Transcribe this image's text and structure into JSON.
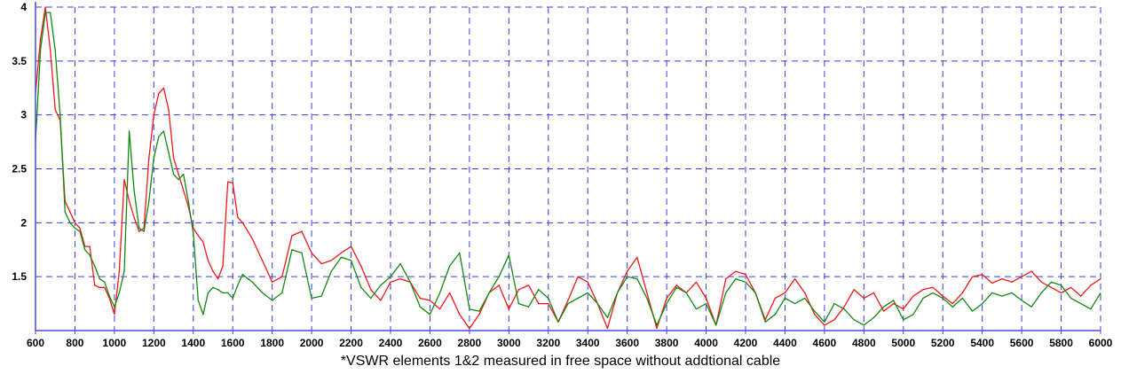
{
  "chart_data": {
    "type": "line",
    "title": "",
    "xlabel": "",
    "ylabel": "",
    "caption": "*VSWR  elements 1&2 measured in free space without addtional cable",
    "xlim": [
      600,
      6000
    ],
    "ylim": [
      1.0,
      4.0
    ],
    "xticks": [
      600,
      800,
      1000,
      1200,
      1400,
      1600,
      1800,
      2000,
      2200,
      2400,
      2600,
      2800,
      3000,
      3200,
      3400,
      3600,
      3800,
      4000,
      4200,
      4400,
      4600,
      4800,
      5000,
      5200,
      5400,
      5600,
      5800,
      6000
    ],
    "xtick_labels": [
      "600",
      "800",
      "1000",
      "1200",
      "1400",
      "1600",
      "1800",
      "2000",
      "2200",
      "2400",
      "2600",
      "2800",
      "3000",
      "3200",
      "3400",
      "3600",
      "3800",
      "4000",
      "4200",
      "4400",
      "4600",
      "4800",
      "5000",
      "5200",
      "5400",
      "5600",
      "5800",
      "6000"
    ],
    "yticks": [
      1.5,
      2,
      2.5,
      3,
      3.5,
      4
    ],
    "ytick_labels": [
      "1.5",
      "2",
      "2.5",
      "3",
      "3.5",
      "4"
    ],
    "grid": true,
    "colors": {
      "grid": "#3c3cdc",
      "axis": "#4a4ae0",
      "series1": "#f01818",
      "series2": "#128a12"
    },
    "series": [
      {
        "x": [
          600,
          625,
          650,
          675,
          700,
          725,
          750,
          775,
          800,
          825,
          850,
          875,
          900,
          925,
          950,
          975,
          1000,
          1025,
          1050,
          1075,
          1100,
          1125,
          1150,
          1175,
          1200,
          1225,
          1250,
          1275,
          1300,
          1325,
          1350,
          1375,
          1400,
          1425,
          1450,
          1475,
          1500,
          1525,
          1550,
          1575,
          1600,
          1625,
          1650,
          1700,
          1750,
          1800,
          1850,
          1900,
          1950,
          2000,
          2050,
          2100,
          2150,
          2200,
          2250,
          2300,
          2350,
          2400,
          2450,
          2500,
          2550,
          2600,
          2650,
          2700,
          2750,
          2800,
          2850,
          2900,
          2950,
          3000,
          3050,
          3100,
          3150,
          3200,
          3250,
          3300,
          3350,
          3400,
          3450,
          3500,
          3550,
          3600,
          3650,
          3700,
          3750,
          3800,
          3850,
          3900,
          3950,
          4000,
          4050,
          4100,
          4150,
          4200,
          4250,
          4300,
          4350,
          4400,
          4450,
          4500,
          4550,
          4600,
          4650,
          4700,
          4750,
          4800,
          4850,
          4900,
          4950,
          5000,
          5050,
          5100,
          5150,
          5200,
          5250,
          5300,
          5350,
          5400,
          5450,
          5500,
          5550,
          5600,
          5650,
          5700,
          5750,
          5800,
          5850,
          5900,
          5950,
          6000
        ],
        "values": [
          3.2,
          3.7,
          4.0,
          3.6,
          3.05,
          2.95,
          2.2,
          2.1,
          2.0,
          1.95,
          1.78,
          1.78,
          1.42,
          1.4,
          1.4,
          1.3,
          1.15,
          1.55,
          2.4,
          2.2,
          2.05,
          1.92,
          1.95,
          2.6,
          3.0,
          3.2,
          3.25,
          3.05,
          2.6,
          2.45,
          2.3,
          2.15,
          1.95,
          1.88,
          1.82,
          1.65,
          1.55,
          1.48,
          1.6,
          2.38,
          2.37,
          2.05,
          2.0,
          1.85,
          1.65,
          1.45,
          1.5,
          1.88,
          1.92,
          1.72,
          1.62,
          1.65,
          1.72,
          1.78,
          1.6,
          1.38,
          1.28,
          1.45,
          1.48,
          1.45,
          1.3,
          1.28,
          1.2,
          1.35,
          1.15,
          1.02,
          1.15,
          1.35,
          1.42,
          1.2,
          1.38,
          1.42,
          1.25,
          1.25,
          1.08,
          1.28,
          1.5,
          1.45,
          1.25,
          1.02,
          1.35,
          1.55,
          1.68,
          1.35,
          1.02,
          1.3,
          1.42,
          1.35,
          1.45,
          1.3,
          1.05,
          1.48,
          1.55,
          1.52,
          1.35,
          1.1,
          1.3,
          1.35,
          1.48,
          1.35,
          1.15,
          1.05,
          1.1,
          1.22,
          1.38,
          1.3,
          1.35,
          1.18,
          1.25,
          1.2,
          1.32,
          1.38,
          1.4,
          1.32,
          1.25,
          1.35,
          1.5,
          1.52,
          1.44,
          1.48,
          1.45,
          1.5,
          1.55,
          1.45,
          1.4,
          1.35,
          1.4,
          1.32,
          1.42,
          1.48
        ]
      },
      {
        "x": [
          600,
          625,
          650,
          675,
          700,
          725,
          750,
          775,
          800,
          825,
          850,
          875,
          900,
          925,
          950,
          975,
          1000,
          1025,
          1050,
          1075,
          1100,
          1125,
          1150,
          1175,
          1200,
          1225,
          1250,
          1275,
          1300,
          1325,
          1350,
          1375,
          1400,
          1425,
          1450,
          1475,
          1500,
          1525,
          1550,
          1575,
          1600,
          1625,
          1650,
          1700,
          1750,
          1800,
          1850,
          1900,
          1950,
          2000,
          2050,
          2100,
          2150,
          2200,
          2250,
          2300,
          2350,
          2400,
          2450,
          2500,
          2550,
          2600,
          2650,
          2700,
          2750,
          2800,
          2850,
          2900,
          2950,
          3000,
          3050,
          3100,
          3150,
          3200,
          3250,
          3300,
          3350,
          3400,
          3450,
          3500,
          3550,
          3600,
          3650,
          3700,
          3750,
          3800,
          3850,
          3900,
          3950,
          4000,
          4050,
          4100,
          4150,
          4200,
          4250,
          4300,
          4350,
          4400,
          4450,
          4500,
          4550,
          4600,
          4650,
          4700,
          4750,
          4800,
          4850,
          4900,
          4950,
          5000,
          5050,
          5100,
          5150,
          5200,
          5250,
          5300,
          5350,
          5400,
          5450,
          5500,
          5550,
          5600,
          5650,
          5700,
          5750,
          5800,
          5850,
          5900,
          5950,
          6000
        ],
        "values": [
          2.75,
          3.6,
          3.95,
          3.95,
          3.6,
          3.0,
          2.1,
          2.0,
          1.95,
          1.92,
          1.75,
          1.7,
          1.6,
          1.48,
          1.45,
          1.32,
          1.22,
          1.35,
          1.55,
          2.85,
          2.3,
          1.95,
          1.92,
          2.2,
          2.6,
          2.8,
          2.85,
          2.65,
          2.45,
          2.4,
          2.45,
          2.2,
          1.9,
          1.28,
          1.15,
          1.35,
          1.4,
          1.38,
          1.35,
          1.35,
          1.3,
          1.42,
          1.52,
          1.45,
          1.35,
          1.28,
          1.35,
          1.75,
          1.72,
          1.3,
          1.32,
          1.55,
          1.68,
          1.65,
          1.4,
          1.3,
          1.42,
          1.5,
          1.62,
          1.45,
          1.22,
          1.15,
          1.35,
          1.6,
          1.72,
          1.2,
          1.18,
          1.35,
          1.5,
          1.7,
          1.25,
          1.22,
          1.38,
          1.3,
          1.08,
          1.25,
          1.3,
          1.35,
          1.25,
          1.12,
          1.35,
          1.5,
          1.48,
          1.3,
          1.05,
          1.25,
          1.4,
          1.35,
          1.2,
          1.25,
          1.05,
          1.35,
          1.48,
          1.45,
          1.35,
          1.08,
          1.15,
          1.3,
          1.25,
          1.3,
          1.18,
          1.08,
          1.25,
          1.2,
          1.1,
          1.05,
          1.12,
          1.22,
          1.28,
          1.1,
          1.15,
          1.3,
          1.35,
          1.3,
          1.22,
          1.3,
          1.18,
          1.25,
          1.35,
          1.32,
          1.35,
          1.28,
          1.22,
          1.35,
          1.45,
          1.42,
          1.3,
          1.25,
          1.2,
          1.35
        ]
      }
    ]
  }
}
